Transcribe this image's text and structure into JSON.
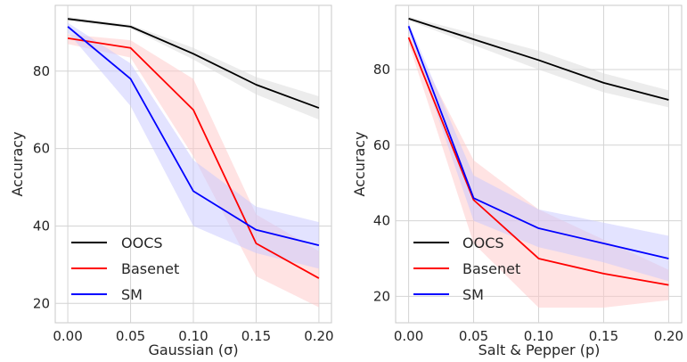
{
  "chart_data": [
    {
      "type": "line",
      "xlabel": "Gaussian (σ)",
      "ylabel": "Accuracy",
      "x": [
        0.0,
        0.05,
        0.1,
        0.15,
        0.2
      ],
      "x_ticks": [
        "0.00",
        "0.05",
        "0.10",
        "0.15",
        "0.20"
      ],
      "xlim": [
        -0.01,
        0.21
      ],
      "ylim": [
        15,
        97
      ],
      "y_ticks": [
        20,
        40,
        60,
        80
      ],
      "grid": true,
      "legend_position": "bottom-left",
      "series": [
        {
          "name": "OOCS",
          "color": "#000000",
          "band_color": "#d9d9d9",
          "values": [
            93.5,
            91.5,
            84.5,
            76.5,
            70.5
          ],
          "lower": [
            93.0,
            91.0,
            83.0,
            74.0,
            67.5
          ],
          "upper": [
            94.0,
            92.0,
            86.0,
            78.5,
            73.5
          ]
        },
        {
          "name": "Basenet",
          "color": "#ff0000",
          "band_color": "#ffc8c8",
          "values": [
            88.5,
            86.0,
            70.0,
            35.5,
            26.5
          ],
          "lower": [
            87.0,
            83.5,
            58.0,
            27.0,
            19.0
          ],
          "upper": [
            89.5,
            88.0,
            78.0,
            43.0,
            33.5
          ]
        },
        {
          "name": "SM",
          "color": "#0000ff",
          "band_color": "#c8c8ff",
          "values": [
            91.5,
            78.0,
            49.0,
            39.0,
            35.0
          ],
          "lower": [
            90.0,
            71.0,
            40.0,
            33.0,
            29.0
          ],
          "upper": [
            92.5,
            82.0,
            57.0,
            45.0,
            41.0
          ]
        }
      ]
    },
    {
      "type": "line",
      "xlabel": "Salt & Pepper (p)",
      "ylabel": "Accuracy",
      "x": [
        0.0,
        0.05,
        0.1,
        0.15,
        0.2
      ],
      "x_ticks": [
        "0.00",
        "0.05",
        "0.10",
        "0.15",
        "0.20"
      ],
      "xlim": [
        -0.01,
        0.21
      ],
      "ylim": [
        13,
        97
      ],
      "y_ticks": [
        20,
        40,
        60,
        80
      ],
      "grid": true,
      "legend_position": "bottom-left",
      "series": [
        {
          "name": "OOCS",
          "color": "#000000",
          "band_color": "#d9d9d9",
          "values": [
            93.5,
            88.0,
            82.5,
            76.5,
            72.0
          ],
          "lower": [
            93.0,
            86.5,
            80.0,
            74.0,
            70.0
          ],
          "upper": [
            94.0,
            89.5,
            85.0,
            79.0,
            74.5
          ]
        },
        {
          "name": "Basenet",
          "color": "#ff0000",
          "band_color": "#ffc8c8",
          "values": [
            88.5,
            45.5,
            30.0,
            26.0,
            23.0
          ],
          "lower": [
            87.0,
            34.0,
            17.0,
            17.0,
            19.0
          ],
          "upper": [
            89.5,
            56.0,
            43.0,
            35.0,
            27.0
          ]
        },
        {
          "name": "SM",
          "color": "#0000ff",
          "band_color": "#c8c8ff",
          "values": [
            91.5,
            46.0,
            38.0,
            34.0,
            30.0
          ],
          "lower": [
            90.0,
            40.0,
            33.0,
            29.0,
            24.0
          ],
          "upper": [
            92.5,
            52.0,
            43.0,
            39.5,
            36.0
          ]
        }
      ]
    }
  ]
}
